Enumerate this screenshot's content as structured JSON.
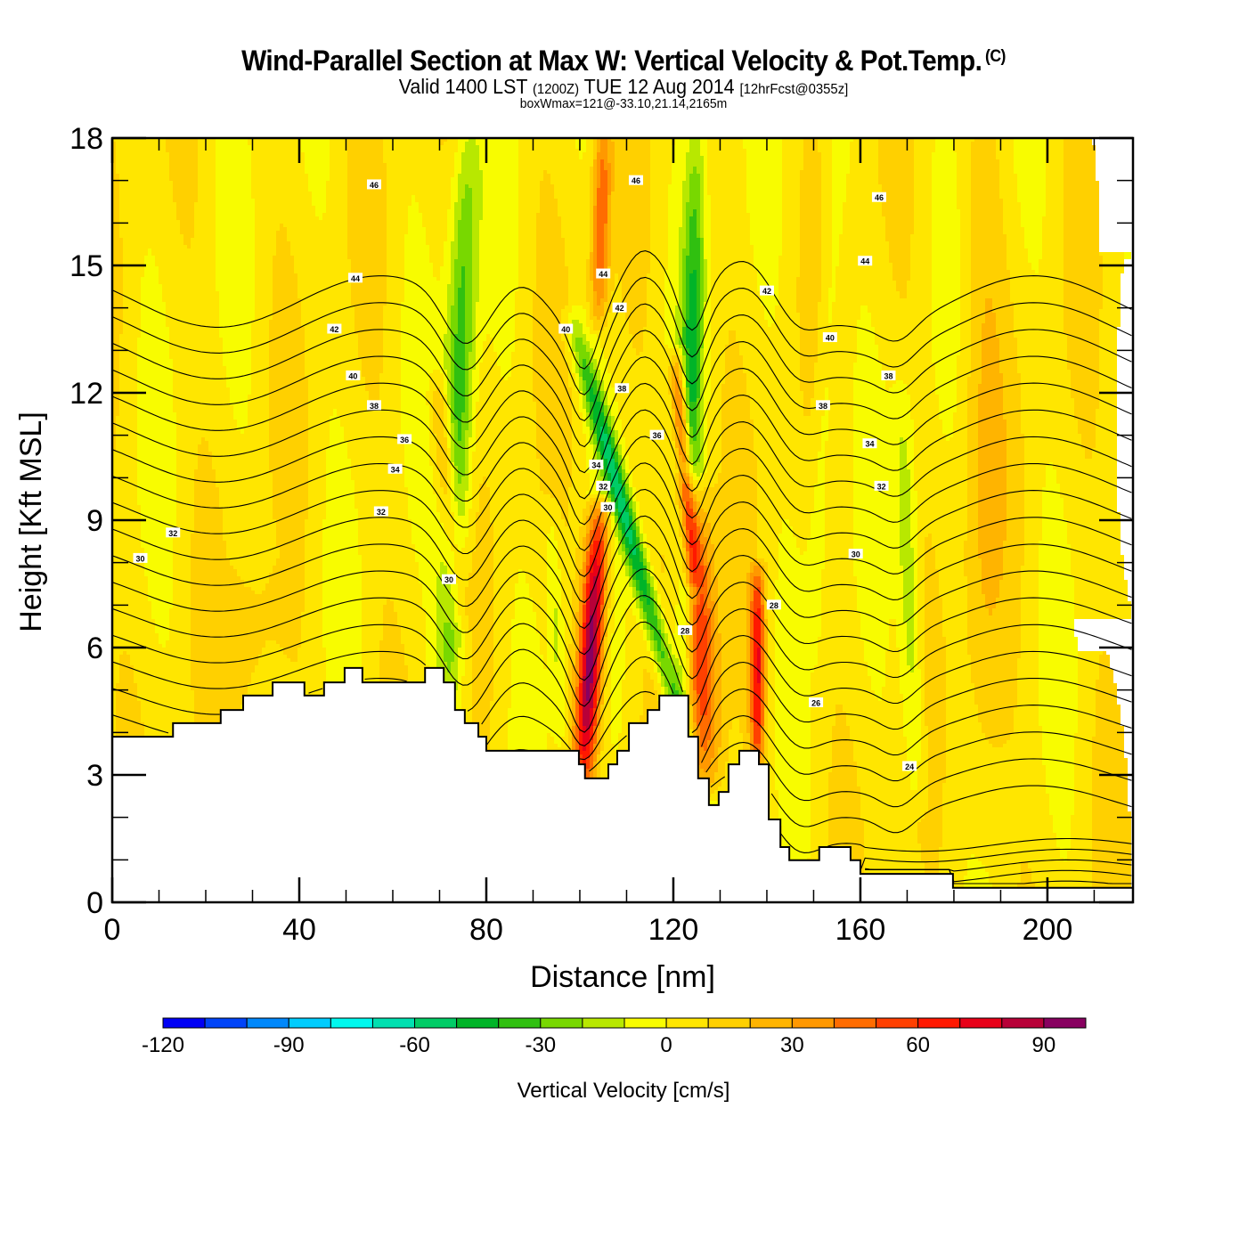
{
  "chart_data": {
    "type": "heatmap",
    "title": "Wind-Parallel Section at Max W: Vertical Velocity & Pot.Temp.",
    "title_mark": "(C)",
    "subtitle": {
      "valid": "Valid 1400 LST",
      "utc": "(1200Z)",
      "date": "TUE 12 Aug 2014",
      "forecast": "[12hrFcst@0355z]"
    },
    "box_info": "boxWmax=121@-33.10,21.14,2165m",
    "xlabel": "Distance [nm]",
    "ylabel": "Height [Kft MSL]",
    "xlim": [
      0,
      218.3
    ],
    "ylim": [
      0,
      18
    ],
    "x_ticks": [
      {
        "value": 0,
        "label": "0"
      },
      {
        "value": 40,
        "label": "40"
      },
      {
        "value": 80,
        "label": "80"
      },
      {
        "value": 120,
        "label": "120"
      },
      {
        "value": 160,
        "label": "160"
      },
      {
        "value": 200,
        "label": "200"
      }
    ],
    "x_minor_step": 10,
    "y_ticks": [
      {
        "value": 0,
        "label": "0"
      },
      {
        "value": 3,
        "label": "3"
      },
      {
        "value": 6,
        "label": "6"
      },
      {
        "value": 9,
        "label": "9"
      },
      {
        "value": 12,
        "label": "12"
      },
      {
        "value": 15,
        "label": "15"
      },
      {
        "value": 18,
        "label": "18"
      }
    ],
    "y_minor_step": 1,
    "colorbar": {
      "label": "Vertical Velocity [cm/s]",
      "levels": [
        -120,
        -110,
        -100,
        -90,
        -80,
        -70,
        -60,
        -50,
        -40,
        -30,
        -20,
        -10,
        0,
        10,
        20,
        30,
        40,
        50,
        60,
        70,
        80,
        90,
        100
      ],
      "colors": [
        "#0000f5",
        "#0044f8",
        "#0088fb",
        "#00ccfd",
        "#00f8ee",
        "#00e0b0",
        "#00cc66",
        "#00b428",
        "#30c010",
        "#78d800",
        "#b8e800",
        "#f8fc00",
        "#ffe600",
        "#ffd000",
        "#ffb400",
        "#ff9800",
        "#ff6c00",
        "#ff4000",
        "#ff1800",
        "#e80018",
        "#b80038",
        "#880060"
      ],
      "tick_labels": [
        {
          "value": -120,
          "label": "-120"
        },
        {
          "value": -90,
          "label": "-90"
        },
        {
          "value": -60,
          "label": "-60"
        },
        {
          "value": -30,
          "label": "-30"
        },
        {
          "value": 0,
          "label": "0"
        },
        {
          "value": 30,
          "label": "30"
        },
        {
          "value": 60,
          "label": "60"
        },
        {
          "value": 90,
          "label": "90"
        }
      ]
    },
    "background_w": 5,
    "w_features": [
      {
        "kind": "downdraft",
        "x_base": 72,
        "x_top": 76,
        "y_base": 4.5,
        "y_top": 18,
        "width": 4,
        "w": -45
      },
      {
        "kind": "updraft",
        "x_base": 101,
        "x_top": 104,
        "y_base": 3.2,
        "y_top": 9.0,
        "width": 3.2,
        "w": 95
      },
      {
        "kind": "updraft",
        "x_base": 104,
        "x_top": 105,
        "y_base": 14,
        "y_top": 18,
        "width": 2.5,
        "w": 45
      },
      {
        "kind": "downdraft",
        "x_base": 122,
        "x_top": 99,
        "y_base": 4.0,
        "y_top": 13.5,
        "width": 3,
        "w": -55
      },
      {
        "kind": "downdraft",
        "x_base": 122,
        "x_top": 125,
        "y_base": 4.0,
        "y_top": 18,
        "width": 3,
        "w": -45
      },
      {
        "kind": "updraft",
        "x_base": 127,
        "x_top": 124,
        "y_base": 3.0,
        "y_top": 9.5,
        "width": 4.5,
        "w": 60
      },
      {
        "kind": "updraft",
        "x_base": 124,
        "x_top": 121,
        "y_base": 8.0,
        "y_top": 12.5,
        "width": 2.2,
        "w": 70
      },
      {
        "kind": "updraft",
        "x_base": 138,
        "x_top": 138,
        "y_base": 3.5,
        "y_top": 7.5,
        "width": 2,
        "w": 65
      },
      {
        "kind": "updraft",
        "x_base": 74,
        "x_top": 70,
        "y_base": 7,
        "y_top": 12,
        "width": 3,
        "w": 35
      },
      {
        "kind": "downdraft",
        "x_base": 172,
        "x_top": 169,
        "y_base": 2.5,
        "y_top": 12,
        "width": 3,
        "w": -25
      },
      {
        "kind": "downdraft",
        "x_base": 96,
        "x_top": 94,
        "y_base": 4,
        "y_top": 9,
        "width": 2.2,
        "w": -18
      },
      {
        "kind": "downdraft",
        "x_base": 150,
        "x_top": 155,
        "y_base": 6,
        "y_top": 18,
        "width": 3,
        "w": -14
      },
      {
        "kind": "updraft",
        "x_base": 186,
        "x_top": 186,
        "y_base": 0.5,
        "y_top": 18,
        "width": 6,
        "w": 14
      },
      {
        "kind": "updraft",
        "x_base": 30,
        "x_top": 30,
        "y_base": 4.5,
        "y_top": 7.5,
        "width": 8,
        "w": 12
      }
    ],
    "terrain_kft": [
      {
        "x": 0,
        "h": 3.9
      },
      {
        "x": 13,
        "h": 4.22
      },
      {
        "x": 23.2,
        "h": 4.53
      },
      {
        "x": 28,
        "h": 4.87
      },
      {
        "x": 34.3,
        "h": 5.18
      },
      {
        "x": 41.1,
        "h": 4.87
      },
      {
        "x": 45.3,
        "h": 5.18
      },
      {
        "x": 49.7,
        "h": 5.52
      },
      {
        "x": 53.5,
        "h": 5.18
      },
      {
        "x": 66.9,
        "h": 5.52
      },
      {
        "x": 70.9,
        "h": 5.18
      },
      {
        "x": 73.3,
        "h": 4.53
      },
      {
        "x": 75.4,
        "h": 4.22
      },
      {
        "x": 78.3,
        "h": 3.9
      },
      {
        "x": 80,
        "h": 3.57
      },
      {
        "x": 99.8,
        "h": 3.25
      },
      {
        "x": 101.1,
        "h": 2.92
      },
      {
        "x": 106.1,
        "h": 3.25
      },
      {
        "x": 108,
        "h": 3.57
      },
      {
        "x": 110.5,
        "h": 4.22
      },
      {
        "x": 114.5,
        "h": 4.53
      },
      {
        "x": 117,
        "h": 4.87
      },
      {
        "x": 123.2,
        "h": 3.9
      },
      {
        "x": 125.3,
        "h": 2.92
      },
      {
        "x": 127.6,
        "h": 2.29
      },
      {
        "x": 129.7,
        "h": 2.6
      },
      {
        "x": 131.8,
        "h": 3.25
      },
      {
        "x": 134.1,
        "h": 3.57
      },
      {
        "x": 138.3,
        "h": 3.25
      },
      {
        "x": 140.4,
        "h": 1.95
      },
      {
        "x": 142.9,
        "h": 1.3
      },
      {
        "x": 144.8,
        "h": 0.99
      },
      {
        "x": 151.2,
        "h": 1.3
      },
      {
        "x": 157.9,
        "h": 0.99
      },
      {
        "x": 160,
        "h": 0.67
      },
      {
        "x": 179.8,
        "h": 0.34
      },
      {
        "x": 218.3,
        "h": 0.34
      }
    ],
    "theta_contours": {
      "interval": 1,
      "min": 23,
      "max": 47,
      "labels": [
        {
          "x": 6,
          "y": 8.1,
          "label": "30"
        },
        {
          "x": 13,
          "y": 8.7,
          "label": "32"
        },
        {
          "x": 57.5,
          "y": 9.2,
          "label": "32"
        },
        {
          "x": 60.5,
          "y": 10.2,
          "label": "34"
        },
        {
          "x": 62.5,
          "y": 10.9,
          "label": "36"
        },
        {
          "x": 56,
          "y": 11.7,
          "label": "38"
        },
        {
          "x": 51.5,
          "y": 12.4,
          "label": "40"
        },
        {
          "x": 47.5,
          "y": 13.5,
          "label": "42"
        },
        {
          "x": 52,
          "y": 14.7,
          "label": "44"
        },
        {
          "x": 56,
          "y": 16.9,
          "label": "46"
        },
        {
          "x": 72,
          "y": 7.6,
          "label": "30"
        },
        {
          "x": 97,
          "y": 13.5,
          "label": "40"
        },
        {
          "x": 105,
          "y": 14.8,
          "label": "44"
        },
        {
          "x": 108.5,
          "y": 14.0,
          "label": "42"
        },
        {
          "x": 109,
          "y": 12.1,
          "label": "38"
        },
        {
          "x": 103.5,
          "y": 10.3,
          "label": "34"
        },
        {
          "x": 105,
          "y": 9.8,
          "label": "32"
        },
        {
          "x": 106,
          "y": 9.3,
          "label": "30"
        },
        {
          "x": 112,
          "y": 17.0,
          "label": "46"
        },
        {
          "x": 122.5,
          "y": 6.4,
          "label": "28"
        },
        {
          "x": 116.5,
          "y": 11.0,
          "label": "36"
        },
        {
          "x": 141.5,
          "y": 7.0,
          "label": "28"
        },
        {
          "x": 150.5,
          "y": 4.7,
          "label": "26"
        },
        {
          "x": 140,
          "y": 14.4,
          "label": "42"
        },
        {
          "x": 153.5,
          "y": 13.3,
          "label": "40"
        },
        {
          "x": 152,
          "y": 11.7,
          "label": "38"
        },
        {
          "x": 164,
          "y": 16.6,
          "label": "46"
        },
        {
          "x": 161,
          "y": 15.1,
          "label": "44"
        },
        {
          "x": 166,
          "y": 12.4,
          "label": "38"
        },
        {
          "x": 162,
          "y": 10.8,
          "label": "34"
        },
        {
          "x": 164.5,
          "y": 9.8,
          "label": "32"
        },
        {
          "x": 159,
          "y": 8.2,
          "label": "30"
        },
        {
          "x": 170.5,
          "y": 3.2,
          "label": "24"
        }
      ]
    }
  }
}
